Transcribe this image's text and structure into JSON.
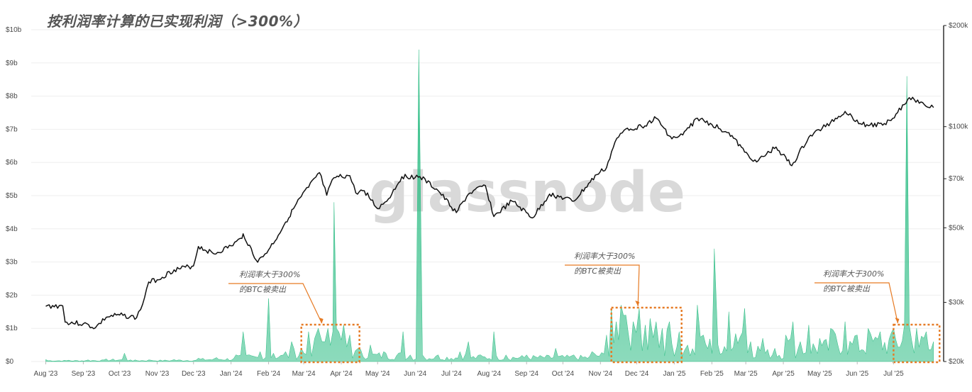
{
  "chart_data": {
    "type": "area",
    "title": "按利润率计算的已实现利润（>300%）",
    "watermark": "glassnode",
    "x_tick_labels": [
      "Aug '23",
      "Sep '23",
      "Oct '23",
      "Nov '23",
      "Dec '23",
      "Jan '24",
      "Feb '24",
      "Mar '24",
      "Apr '24",
      "May '24",
      "Jun '24",
      "Jul '24",
      "Aug '24",
      "Sep '24",
      "Oct '24",
      "Nov '24",
      "Dec '24",
      "Jan '25",
      "Feb '25",
      "Mar '25",
      "Apr '25",
      "May '25",
      "Jun '25",
      "Jul '25"
    ],
    "y_left_tick_labels": [
      "$0",
      "$1b",
      "$2b",
      "$3b",
      "$4b",
      "$5b",
      "$6b",
      "$7b",
      "$8b",
      "$9b",
      "$10b"
    ],
    "y_left_range": [
      0,
      10
    ],
    "y_left_unit": "billion USD",
    "y_right_tick_labels": [
      "$20k",
      "$30k",
      "$50k",
      "$70k",
      "$100k",
      "$200k"
    ],
    "y_right_ticks": [
      20000,
      30000,
      50000,
      70000,
      100000,
      200000
    ],
    "y_right_range": [
      20000,
      200000
    ],
    "y_right_scale": "log",
    "grid": true,
    "series": [
      {
        "type": "area",
        "color": "#2ebd85",
        "axis": "left",
        "points": [
          [
            "2023-08-01",
            0.06
          ],
          [
            "2023-08-20",
            0.04
          ],
          [
            "2023-09-05",
            0.05
          ],
          [
            "2023-09-20",
            0.08
          ],
          [
            "2023-10-05",
            0.25
          ],
          [
            "2023-10-10",
            0.05
          ],
          [
            "2023-10-25",
            0.05
          ],
          [
            "2023-11-15",
            0.06
          ],
          [
            "2023-12-05",
            0.1
          ],
          [
            "2023-12-20",
            0.12
          ],
          [
            "2024-01-05",
            0.2
          ],
          [
            "2024-01-11",
            0.9
          ],
          [
            "2024-01-16",
            0.2
          ],
          [
            "2024-01-25",
            0.3
          ],
          [
            "2024-02-01",
            1.9
          ],
          [
            "2024-02-05",
            0.25
          ],
          [
            "2024-02-15",
            0.3
          ],
          [
            "2024-02-20",
            0.6
          ],
          [
            "2024-02-28",
            0.4
          ],
          [
            "2024-03-05",
            0.9
          ],
          [
            "2024-03-10",
            0.7
          ],
          [
            "2024-03-13",
            1.0
          ],
          [
            "2024-03-16",
            0.6
          ],
          [
            "2024-03-21",
            1.0
          ],
          [
            "2024-03-25",
            0.9
          ],
          [
            "2024-03-26",
            4.8
          ],
          [
            "2024-03-28",
            1.0
          ],
          [
            "2024-04-03",
            1.1
          ],
          [
            "2024-04-08",
            0.8
          ],
          [
            "2024-04-15",
            0.4
          ],
          [
            "2024-04-25",
            0.5
          ],
          [
            "2024-05-06",
            0.3
          ],
          [
            "2024-05-22",
            0.9
          ],
          [
            "2024-05-28",
            0.2
          ],
          [
            "2024-06-04",
            9.4
          ],
          [
            "2024-06-07",
            0.2
          ],
          [
            "2024-06-20",
            0.2
          ],
          [
            "2024-07-08",
            0.3
          ],
          [
            "2024-07-15",
            0.6
          ],
          [
            "2024-07-25",
            0.2
          ],
          [
            "2024-08-05",
            0.9
          ],
          [
            "2024-08-15",
            0.2
          ],
          [
            "2024-09-01",
            0.2
          ],
          [
            "2024-09-25",
            0.4
          ],
          [
            "2024-10-10",
            0.2
          ],
          [
            "2024-10-25",
            0.3
          ],
          [
            "2024-11-06",
            0.8
          ],
          [
            "2024-11-10",
            1.6
          ],
          [
            "2024-11-14",
            1.2
          ],
          [
            "2024-11-18",
            1.7
          ],
          [
            "2024-11-22",
            1.4
          ],
          [
            "2024-11-28",
            1.2
          ],
          [
            "2024-12-03",
            1.6
          ],
          [
            "2024-12-08",
            1.1
          ],
          [
            "2024-12-12",
            1.3
          ],
          [
            "2024-12-17",
            1.2
          ],
          [
            "2024-12-22",
            1.0
          ],
          [
            "2024-12-28",
            1.2
          ],
          [
            "2025-01-05",
            0.9
          ],
          [
            "2025-01-12",
            0.5
          ],
          [
            "2025-01-20",
            1.7
          ],
          [
            "2025-01-25",
            0.8
          ],
          [
            "2025-02-03",
            3.4
          ],
          [
            "2025-02-06",
            0.5
          ],
          [
            "2025-02-15",
            1.5
          ],
          [
            "2025-02-28",
            1.6
          ],
          [
            "2025-03-05",
            0.6
          ],
          [
            "2025-03-15",
            0.7
          ],
          [
            "2025-03-25",
            0.4
          ],
          [
            "2025-04-03",
            0.8
          ],
          [
            "2025-04-09",
            1.2
          ],
          [
            "2025-04-15",
            0.6
          ],
          [
            "2025-04-22",
            1.1
          ],
          [
            "2025-05-01",
            0.7
          ],
          [
            "2025-05-10",
            1.0
          ],
          [
            "2025-05-22",
            1.2
          ],
          [
            "2025-06-01",
            0.8
          ],
          [
            "2025-06-10",
            1.0
          ],
          [
            "2025-06-20",
            0.9
          ],
          [
            "2025-07-01",
            1.0
          ],
          [
            "2025-07-10",
            1.1
          ],
          [
            "2025-07-12",
            8.6
          ],
          [
            "2025-07-14",
            1.1
          ],
          [
            "2025-07-20",
            1.0
          ],
          [
            "2025-07-28",
            0.9
          ],
          [
            "2025-08-03",
            0.6
          ]
        ]
      },
      {
        "type": "line",
        "color": "#111111",
        "axis": "right",
        "points": [
          [
            "2023-08-01",
            29200
          ],
          [
            "2023-08-15",
            29300
          ],
          [
            "2023-08-17",
            26200
          ],
          [
            "2023-09-01",
            25900
          ],
          [
            "2023-09-11",
            25200
          ],
          [
            "2023-09-20",
            27100
          ],
          [
            "2023-10-01",
            27500
          ],
          [
            "2023-10-15",
            27000
          ],
          [
            "2023-10-20",
            29600
          ],
          [
            "2023-10-25",
            34500
          ],
          [
            "2023-11-01",
            35000
          ],
          [
            "2023-11-15",
            37500
          ],
          [
            "2023-12-01",
            38500
          ],
          [
            "2023-12-05",
            44000
          ],
          [
            "2023-12-18",
            41800
          ],
          [
            "2024-01-01",
            44200
          ],
          [
            "2024-01-10",
            46500
          ],
          [
            "2024-01-11",
            48000
          ],
          [
            "2024-01-23",
            39500
          ],
          [
            "2024-02-01",
            43000
          ],
          [
            "2024-02-09",
            47500
          ],
          [
            "2024-02-15",
            52000
          ],
          [
            "2024-02-28",
            62000
          ],
          [
            "2024-03-05",
            66000
          ],
          [
            "2024-03-14",
            73000
          ],
          [
            "2024-03-20",
            62500
          ],
          [
            "2024-03-26",
            70500
          ],
          [
            "2024-04-08",
            71500
          ],
          [
            "2024-04-13",
            63500
          ],
          [
            "2024-04-20",
            64500
          ],
          [
            "2024-05-01",
            57000
          ],
          [
            "2024-05-10",
            61000
          ],
          [
            "2024-05-21",
            71000
          ],
          [
            "2024-06-05",
            71000
          ],
          [
            "2024-06-20",
            64500
          ],
          [
            "2024-07-05",
            55500
          ],
          [
            "2024-07-15",
            63000
          ],
          [
            "2024-07-29",
            66800
          ],
          [
            "2024-08-05",
            54000
          ],
          [
            "2024-08-20",
            60000
          ],
          [
            "2024-09-06",
            53500
          ],
          [
            "2024-09-20",
            63000
          ],
          [
            "2024-10-10",
            60000
          ],
          [
            "2024-10-29",
            72000
          ],
          [
            "2024-11-06",
            75500
          ],
          [
            "2024-11-13",
            90000
          ],
          [
            "2024-11-22",
            98500
          ],
          [
            "2024-12-05",
            100000
          ],
          [
            "2024-12-17",
            106000
          ],
          [
            "2024-12-30",
            92000
          ],
          [
            "2025-01-08",
            94500
          ],
          [
            "2025-01-20",
            106000
          ],
          [
            "2025-02-01",
            101500
          ],
          [
            "2025-02-15",
            96000
          ],
          [
            "2025-02-28",
            84000
          ],
          [
            "2025-03-10",
            78500
          ],
          [
            "2025-03-26",
            87000
          ],
          [
            "2025-04-08",
            76500
          ],
          [
            "2025-04-22",
            93000
          ],
          [
            "2025-05-10",
            103000
          ],
          [
            "2025-05-22",
            111000
          ],
          [
            "2025-06-05",
            101500
          ],
          [
            "2025-06-22",
            101000
          ],
          [
            "2025-07-03",
            109000
          ],
          [
            "2025-07-14",
            122000
          ],
          [
            "2025-07-25",
            118000
          ],
          [
            "2025-08-03",
            114000
          ]
        ]
      }
    ],
    "annotations": [
      {
        "text": [
          "利润率大于300%",
          "的BTC被卖出"
        ],
        "box_start": "2024-02-28",
        "box_end": "2024-04-16"
      },
      {
        "text": [
          "利润率大于300%",
          "的BTC被卖出"
        ],
        "box_start": "2024-11-10",
        "box_end": "2025-01-07"
      },
      {
        "text": [
          "利润率大于300%",
          "的BTC被卖出"
        ],
        "box_start": "2025-07-01",
        "box_end": "2025-08-08"
      }
    ],
    "colors": {
      "area": "#2ebd85",
      "line": "#111111",
      "annotation": "#e67a23",
      "grid": "#eeeeee"
    }
  }
}
